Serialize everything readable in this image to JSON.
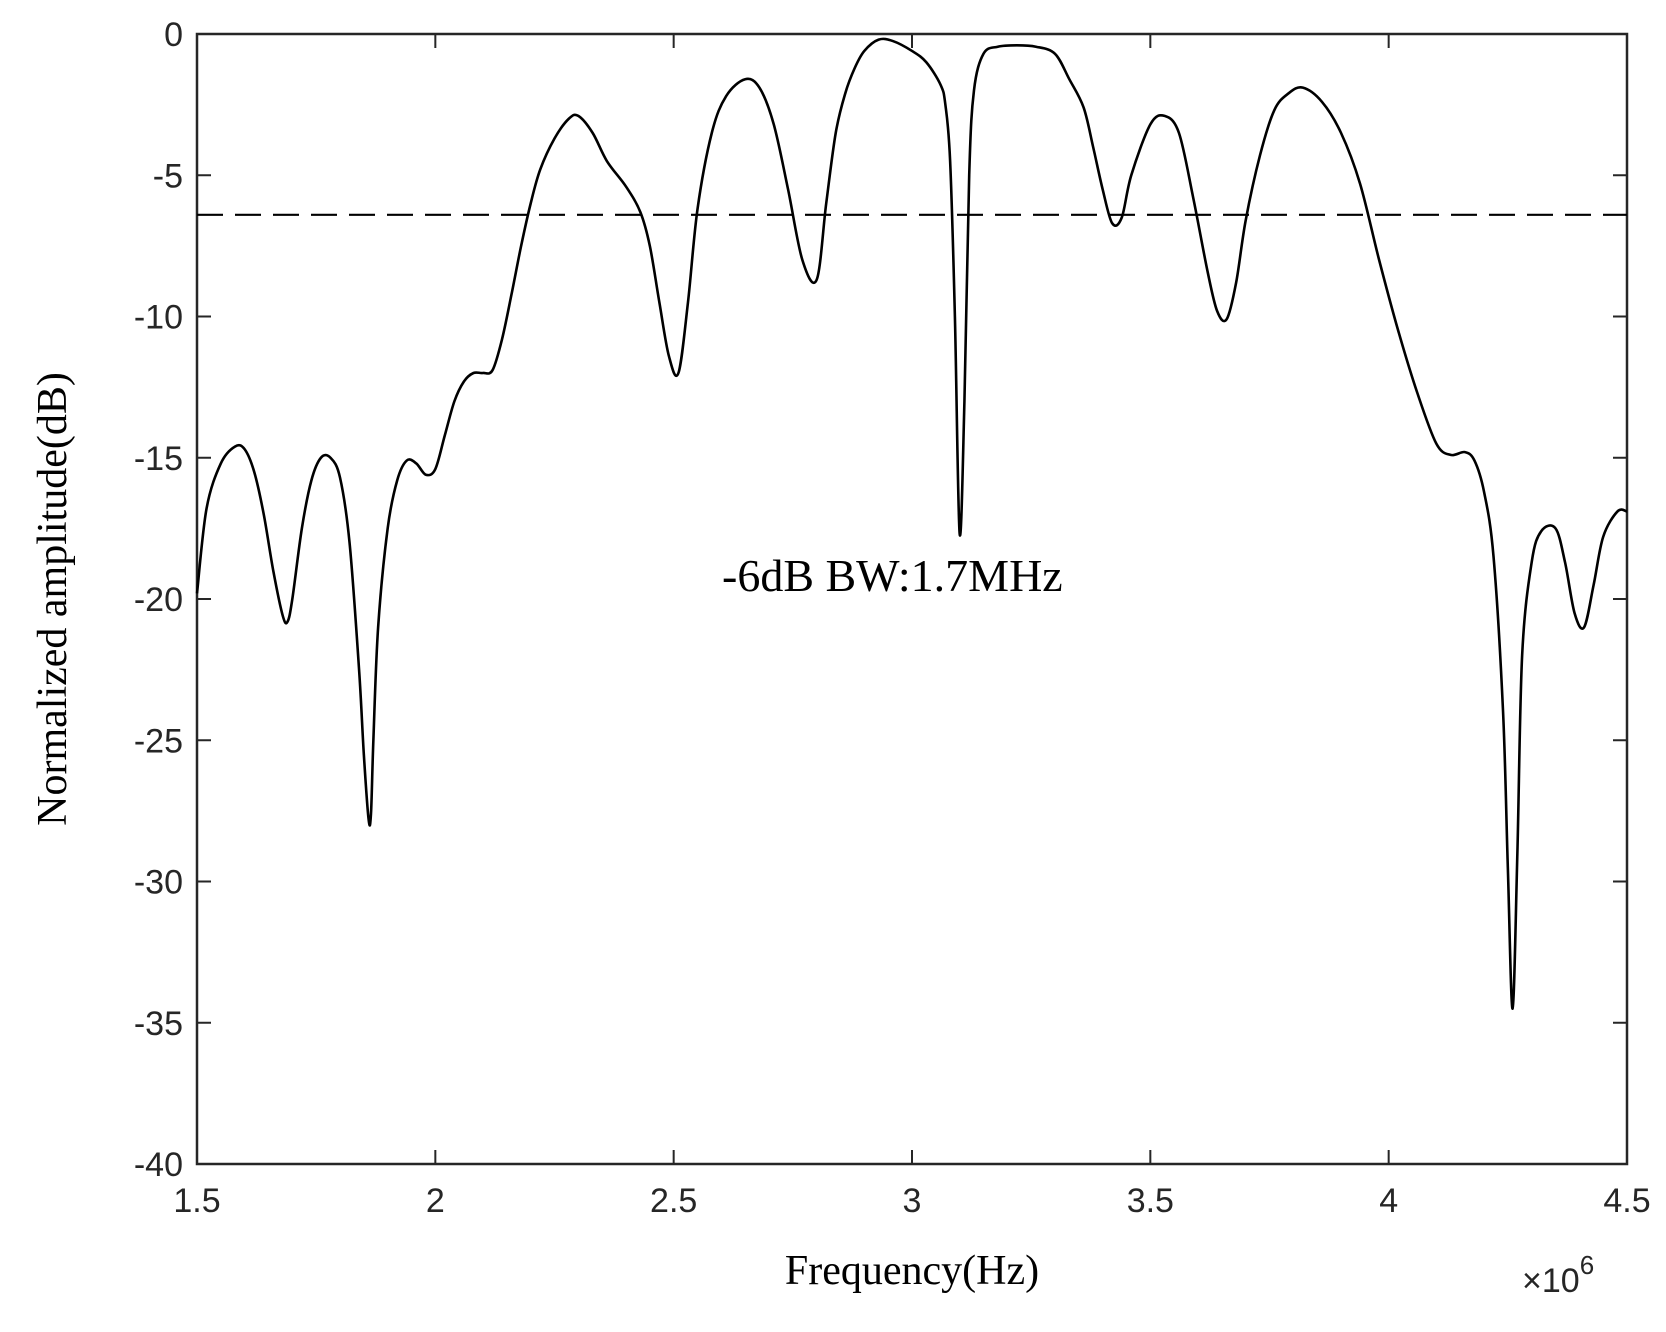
{
  "chart_data": {
    "type": "line",
    "title": "",
    "xlabel": "Frequency(Hz)",
    "ylabel": "Normalized amplitude(dB)",
    "x_multiplier_label": "×10",
    "x_multiplier_exponent": "6",
    "xlim": [
      1.5,
      4.5
    ],
    "ylim": [
      -40,
      0
    ],
    "x_ticks": [
      1.5,
      2,
      2.5,
      3,
      3.5,
      4,
      4.5
    ],
    "x_tick_labels": [
      "1.5",
      "2",
      "2.5",
      "3",
      "3.5",
      "4",
      "4.5"
    ],
    "y_ticks": [
      0,
      -5,
      -10,
      -15,
      -20,
      -25,
      -30,
      -35,
      -40
    ],
    "y_tick_labels": [
      "0",
      "-5",
      "-10",
      "-15",
      "-20",
      "-25",
      "-30",
      "-35",
      "-40"
    ],
    "grid": false,
    "annotation": "-6dB BW:1.7MHz",
    "reference_line": {
      "y": -6.4,
      "style": "dashed"
    },
    "series": [
      {
        "color": "#000000",
        "x": [
          1.5,
          1.52,
          1.55,
          1.58,
          1.6,
          1.62,
          1.64,
          1.66,
          1.68,
          1.69,
          1.7,
          1.72,
          1.74,
          1.76,
          1.78,
          1.8,
          1.82,
          1.84,
          1.85,
          1.86,
          1.865,
          1.87,
          1.88,
          1.9,
          1.92,
          1.94,
          1.96,
          1.98,
          2.0,
          2.02,
          2.04,
          2.06,
          2.08,
          2.1,
          2.12,
          2.14,
          2.16,
          2.18,
          2.2,
          2.22,
          2.25,
          2.28,
          2.3,
          2.33,
          2.36,
          2.4,
          2.43,
          2.45,
          2.47,
          2.49,
          2.51,
          2.53,
          2.55,
          2.58,
          2.61,
          2.65,
          2.68,
          2.71,
          2.74,
          2.77,
          2.8,
          2.82,
          2.84,
          2.86,
          2.88,
          2.9,
          2.93,
          2.96,
          3.0,
          3.03,
          3.06,
          3.07,
          3.08,
          3.09,
          3.1,
          3.11,
          3.12,
          3.13,
          3.15,
          3.18,
          3.22,
          3.26,
          3.3,
          3.33,
          3.36,
          3.38,
          3.4,
          3.42,
          3.44,
          3.46,
          3.5,
          3.53,
          3.56,
          3.59,
          3.62,
          3.64,
          3.66,
          3.68,
          3.7,
          3.73,
          3.76,
          3.79,
          3.82,
          3.86,
          3.9,
          3.94,
          3.98,
          4.02,
          4.06,
          4.1,
          4.13,
          4.16,
          4.18,
          4.2,
          4.22,
          4.24,
          4.25,
          4.26,
          4.27,
          4.28,
          4.3,
          4.32,
          4.35,
          4.37,
          4.39,
          4.41,
          4.43,
          4.45,
          4.48,
          4.5
        ],
        "y": [
          -19.8,
          -16.8,
          -15.2,
          -14.6,
          -14.7,
          -15.5,
          -17.0,
          -19.0,
          -20.6,
          -20.8,
          -20.0,
          -17.5,
          -15.8,
          -15.0,
          -15.0,
          -15.7,
          -18.0,
          -22.5,
          -25.5,
          -27.8,
          -27.6,
          -25.0,
          -21.0,
          -17.5,
          -15.8,
          -15.1,
          -15.2,
          -15.6,
          -15.4,
          -14.2,
          -13.0,
          -12.3,
          -12.0,
          -12.0,
          -11.9,
          -10.8,
          -9.2,
          -7.5,
          -6.0,
          -4.8,
          -3.7,
          -3.0,
          -2.9,
          -3.5,
          -4.5,
          -5.4,
          -6.3,
          -7.5,
          -9.5,
          -11.4,
          -12.0,
          -9.5,
          -6.2,
          -3.5,
          -2.2,
          -1.6,
          -1.9,
          -3.2,
          -5.5,
          -8.0,
          -8.7,
          -6.0,
          -3.5,
          -2.1,
          -1.2,
          -0.6,
          -0.2,
          -0.25,
          -0.6,
          -1.0,
          -1.8,
          -2.5,
          -4.5,
          -10.0,
          -17.7,
          -13.0,
          -5.0,
          -2.0,
          -0.7,
          -0.45,
          -0.4,
          -0.45,
          -0.7,
          -1.6,
          -2.6,
          -4.0,
          -5.5,
          -6.7,
          -6.5,
          -5.0,
          -3.2,
          -2.9,
          -3.5,
          -5.8,
          -8.4,
          -9.8,
          -10.1,
          -8.8,
          -6.6,
          -4.3,
          -2.7,
          -2.1,
          -1.9,
          -2.4,
          -3.5,
          -5.3,
          -8.0,
          -10.5,
          -12.7,
          -14.5,
          -14.9,
          -14.8,
          -15.1,
          -16.2,
          -18.5,
          -24.0,
          -29.5,
          -34.5,
          -29.0,
          -22.0,
          -18.7,
          -17.6,
          -17.5,
          -18.7,
          -20.5,
          -21.0,
          -19.5,
          -17.8,
          -16.9,
          -16.9
        ]
      }
    ]
  }
}
